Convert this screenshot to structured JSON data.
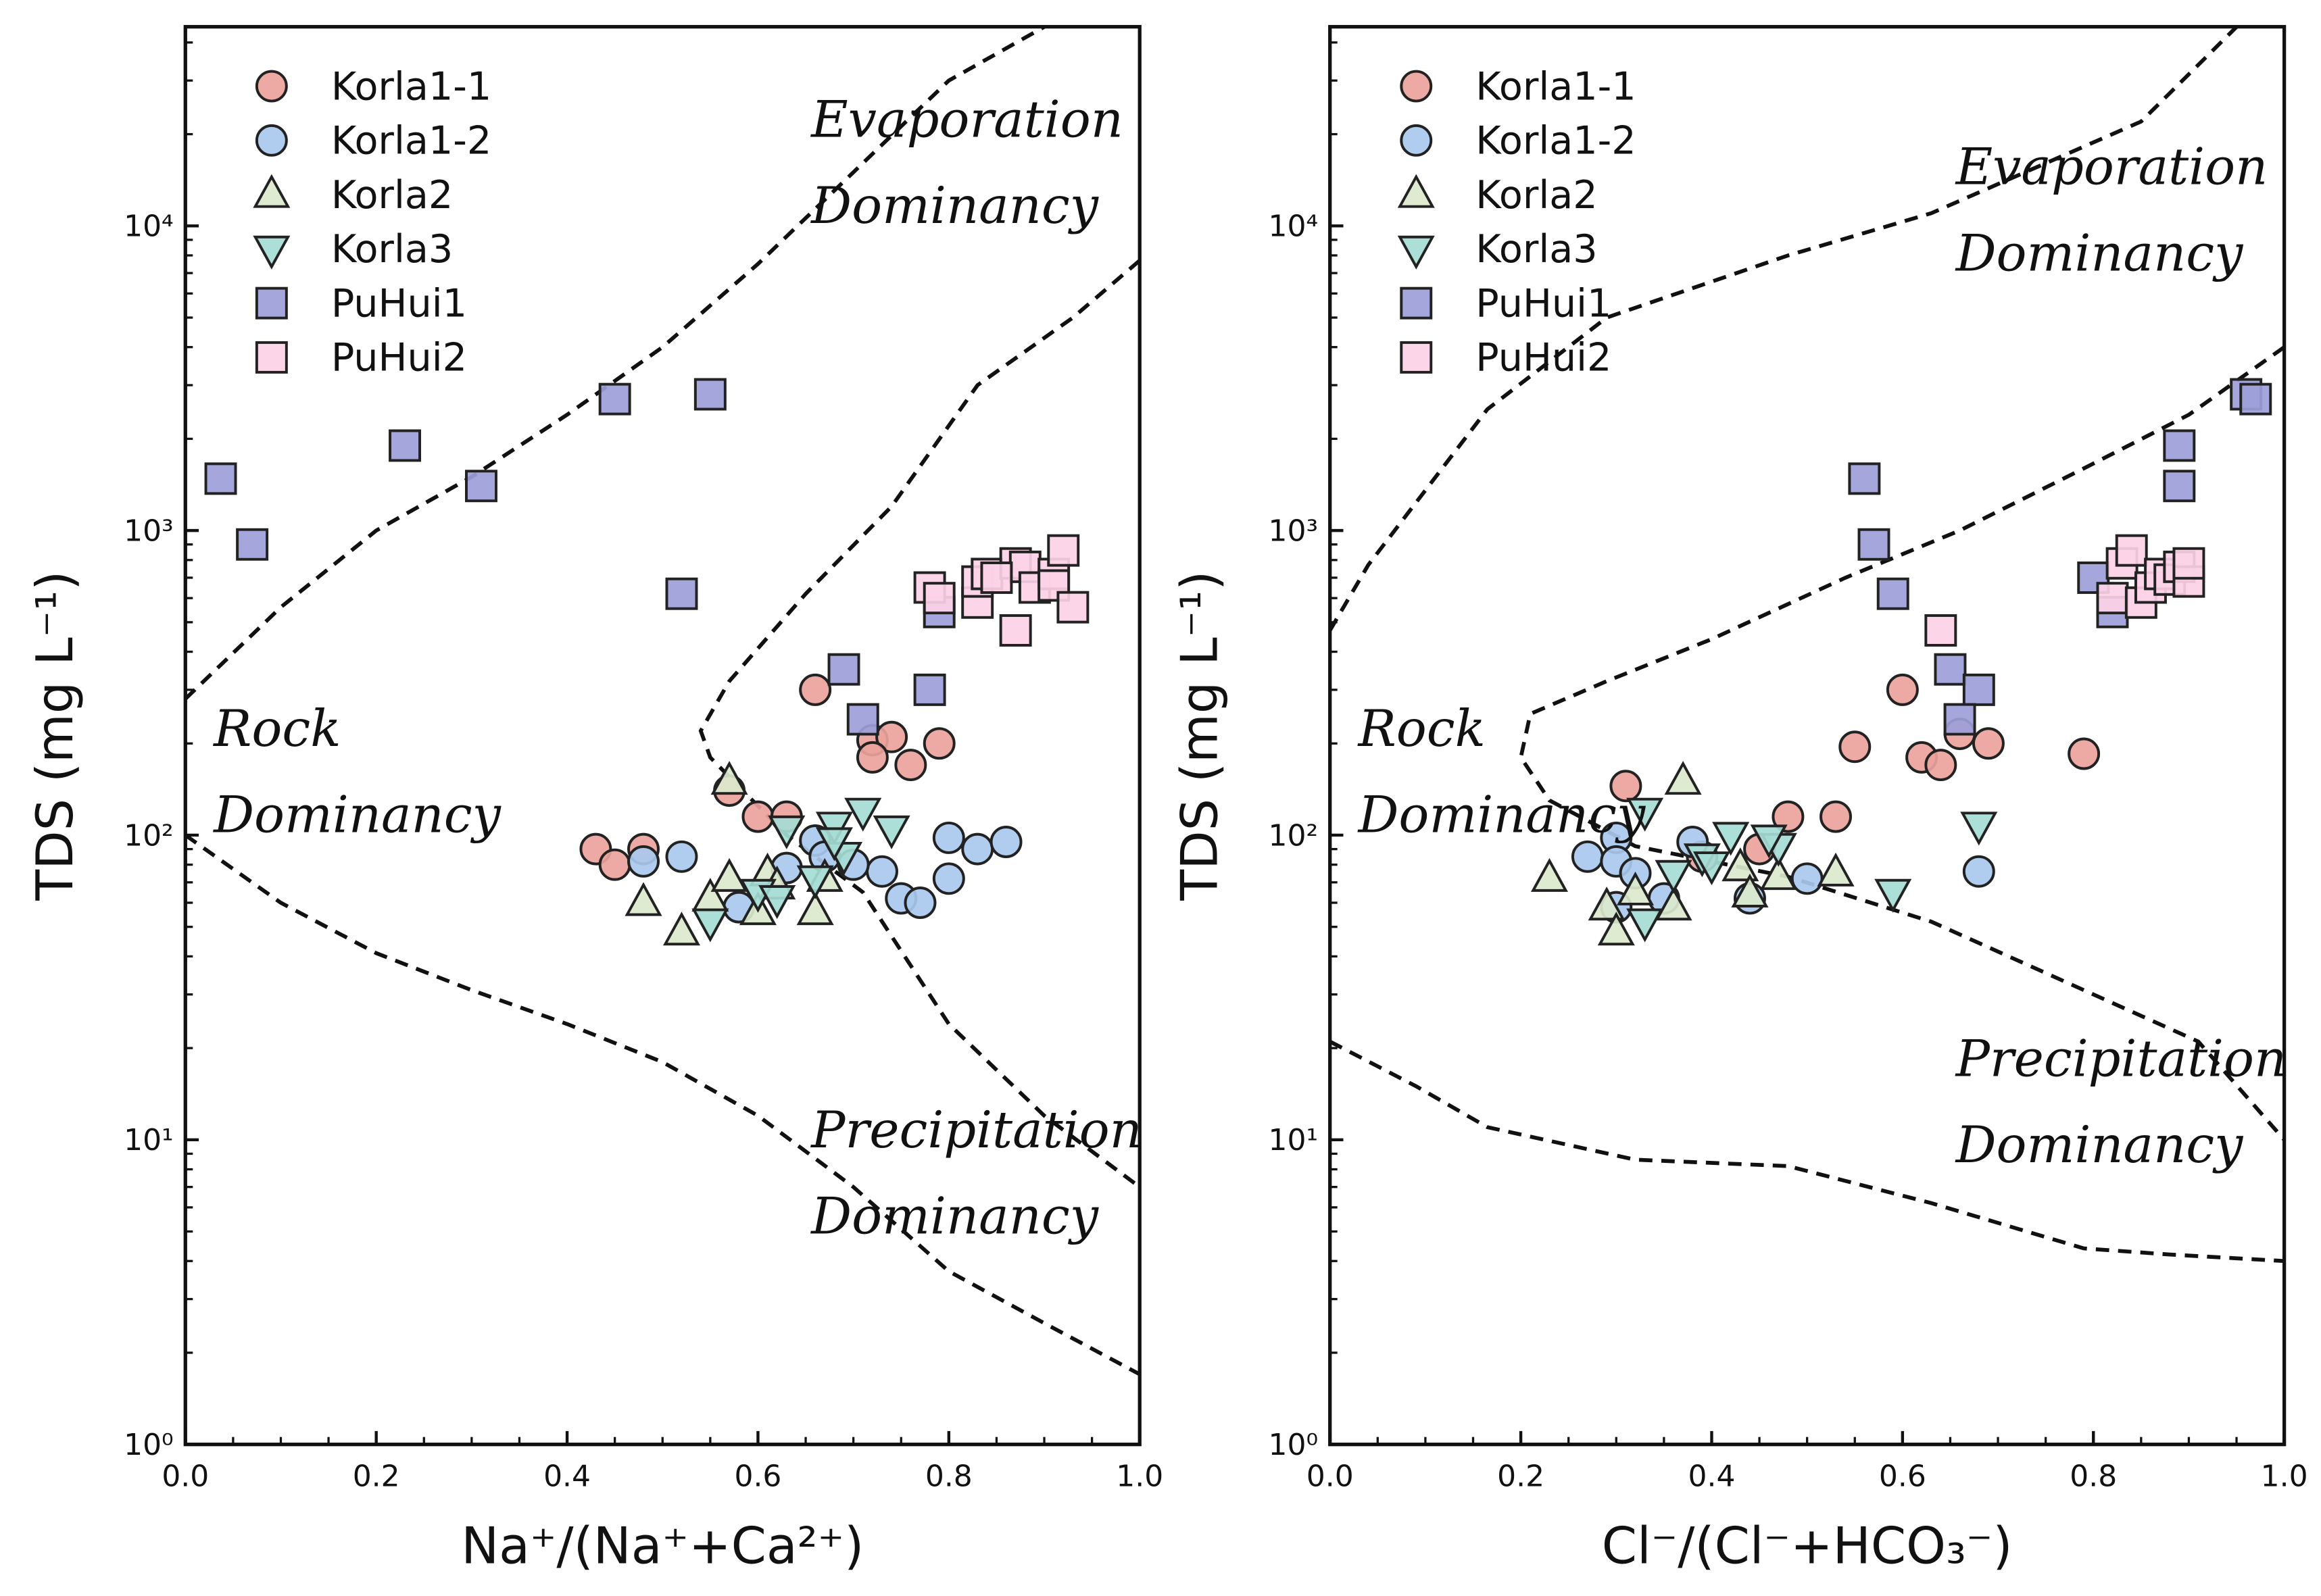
{
  "colors": {
    "Korla1-1": "#eba39c",
    "Korla1-2": "#a9c9ee",
    "Korla2": "#dbe9cc",
    "Korla3": "#a6dcd6",
    "PuHui1": "#9d9fd9",
    "PuHui2": "#fcd3e6"
  },
  "chart_data": [
    {
      "type": "scatter",
      "title": "",
      "xlabel": "Na⁺/(Na⁺+Ca²⁺)",
      "ylabel": "TDS (mg L⁻¹)",
      "xlim": [
        0,
        1
      ],
      "ylim": [
        1,
        45000
      ],
      "yscale": "log",
      "legend": "top-left",
      "xticks": [
        "0.0",
        "0.2",
        "0.4",
        "0.6",
        "0.8",
        "1.0"
      ],
      "yticks": [
        "10⁰",
        "10¹",
        "10²",
        "10³",
        "10⁴"
      ],
      "annotations": [
        {
          "lines": [
            "Evaporation",
            "Dominancy"
          ]
        },
        {
          "lines": [
            "Rock",
            "Dominancy"
          ]
        },
        {
          "lines": [
            "Precipitation",
            "Dominancy"
          ]
        }
      ],
      "series": [
        {
          "name": "Korla1-1",
          "marker": "circle",
          "points": [
            [
              0.66,
              300
            ],
            [
              0.72,
              205
            ],
            [
              0.74,
              210
            ],
            [
              0.79,
              200
            ],
            [
              0.72,
              180
            ],
            [
              0.76,
              170
            ],
            [
              0.57,
              140
            ],
            [
              0.6,
              115
            ],
            [
              0.63,
              115
            ],
            [
              0.43,
              90
            ],
            [
              0.45,
              80
            ],
            [
              0.48,
              90
            ]
          ]
        },
        {
          "name": "Korla1-2",
          "marker": "circle",
          "points": [
            [
              0.48,
              82
            ],
            [
              0.52,
              85
            ],
            [
              0.58,
              58
            ],
            [
              0.63,
              78
            ],
            [
              0.66,
              96
            ],
            [
              0.67,
              85
            ],
            [
              0.73,
              76
            ],
            [
              0.75,
              62
            ],
            [
              0.77,
              60
            ],
            [
              0.8,
              98
            ],
            [
              0.83,
              90
            ],
            [
              0.86,
              95
            ],
            [
              0.8,
              72
            ],
            [
              0.7,
              80
            ]
          ]
        },
        {
          "name": "Korla2",
          "marker": "triangle-up",
          "points": [
            [
              0.48,
              60
            ],
            [
              0.52,
              48
            ],
            [
              0.55,
              62
            ],
            [
              0.57,
              72
            ],
            [
              0.57,
              150
            ],
            [
              0.6,
              56
            ],
            [
              0.61,
              75
            ],
            [
              0.66,
              56
            ],
            [
              0.67,
              72
            ],
            [
              0.62,
              68
            ]
          ]
        },
        {
          "name": "Korla3",
          "marker": "triangle-down",
          "points": [
            [
              0.55,
              52
            ],
            [
              0.6,
              65
            ],
            [
              0.62,
              62
            ],
            [
              0.63,
              105
            ],
            [
              0.68,
              108
            ],
            [
              0.69,
              86
            ],
            [
              0.71,
              120
            ],
            [
              0.74,
              105
            ],
            [
              0.68,
              96
            ],
            [
              0.66,
              72
            ]
          ]
        },
        {
          "name": "PuHui1",
          "marker": "square",
          "points": [
            [
              0.037,
              1480
            ],
            [
              0.07,
              900
            ],
            [
              0.23,
              1900
            ],
            [
              0.31,
              1400
            ],
            [
              0.45,
              2700
            ],
            [
              0.55,
              2800
            ],
            [
              0.52,
              620
            ],
            [
              0.69,
              350
            ],
            [
              0.78,
              300
            ],
            [
              0.71,
              240
            ],
            [
              0.79,
              540
            ]
          ]
        },
        {
          "name": "PuHui2",
          "marker": "square",
          "points": [
            [
              0.78,
              650
            ],
            [
              0.79,
              600
            ],
            [
              0.83,
              580
            ],
            [
              0.83,
              680
            ],
            [
              0.84,
              720
            ],
            [
              0.87,
              780
            ],
            [
              0.88,
              760
            ],
            [
              0.89,
              650
            ],
            [
              0.87,
              470
            ],
            [
              0.91,
              720
            ],
            [
              0.92,
              860
            ],
            [
              0.91,
              660
            ],
            [
              0.93,
              560
            ],
            [
              0.85,
              700
            ]
          ]
        }
      ],
      "boundaries": [
        [
          [
            0,
            280
          ],
          [
            0.1,
            560
          ],
          [
            0.2,
            1000
          ],
          [
            0.3,
            1500
          ],
          [
            0.4,
            2400
          ],
          [
            0.5,
            4000
          ],
          [
            0.6,
            7500
          ],
          [
            0.7,
            15000
          ],
          [
            0.8,
            30000
          ],
          [
            0.9,
            45000
          ]
        ],
        [
          [
            0,
            100
          ],
          [
            0.1,
            60
          ],
          [
            0.2,
            41
          ],
          [
            0.3,
            31
          ],
          [
            0.4,
            24
          ],
          [
            0.5,
            18
          ],
          [
            0.6,
            12
          ],
          [
            0.7,
            7
          ],
          [
            0.8,
            3.7
          ],
          [
            0.9,
            2.5
          ],
          [
            1.0,
            1.7
          ]
        ],
        [
          [
            1.0,
            7700
          ],
          [
            0.93,
            5000
          ],
          [
            0.83,
            3000
          ],
          [
            0.74,
            1200
          ],
          [
            0.65,
            620
          ],
          [
            0.57,
            320
          ],
          [
            0.54,
            220
          ],
          [
            0.55,
            180
          ],
          [
            0.63,
            100
          ],
          [
            0.71,
            65
          ],
          [
            0.8,
            24
          ],
          [
            0.9,
            12
          ],
          [
            1.0,
            7
          ]
        ]
      ]
    },
    {
      "type": "scatter",
      "title": "",
      "xlabel": "Cl⁻/(Cl⁻+HCO₃⁻)",
      "ylabel": "TDS (mg L⁻¹)",
      "xlim": [
        0,
        1
      ],
      "ylim": [
        1,
        45000
      ],
      "yscale": "log",
      "legend": "top-left",
      "xticks": [
        "0.0",
        "0.2",
        "0.4",
        "0.6",
        "0.8",
        "1.0"
      ],
      "yticks": [
        "10⁰",
        "10¹",
        "10²",
        "10³",
        "10⁴"
      ],
      "annotations": [
        {
          "lines": [
            "Evaporation",
            "Dominancy"
          ]
        },
        {
          "lines": [
            "Rock",
            "Dominancy"
          ]
        },
        {
          "lines": [
            "Precipitation",
            "Dominancy"
          ]
        }
      ],
      "series": [
        {
          "name": "Korla1-1",
          "marker": "circle",
          "points": [
            [
              0.6,
              300
            ],
            [
              0.55,
              195
            ],
            [
              0.62,
              180
            ],
            [
              0.64,
              170
            ],
            [
              0.66,
              215
            ],
            [
              0.69,
              200
            ],
            [
              0.79,
              185
            ],
            [
              0.31,
              145
            ],
            [
              0.48,
              115
            ],
            [
              0.53,
              115
            ],
            [
              0.39,
              85
            ],
            [
              0.45,
              90
            ]
          ]
        },
        {
          "name": "Korla1-2",
          "marker": "circle",
          "points": [
            [
              0.27,
              85
            ],
            [
              0.3,
              98
            ],
            [
              0.3,
              82
            ],
            [
              0.32,
              75
            ],
            [
              0.38,
              95
            ],
            [
              0.35,
              62
            ],
            [
              0.44,
              62
            ],
            [
              0.5,
              72
            ],
            [
              0.68,
              76
            ],
            [
              0.3,
              58
            ]
          ]
        },
        {
          "name": "Korla2",
          "marker": "triangle-up",
          "points": [
            [
              0.23,
              72
            ],
            [
              0.29,
              58
            ],
            [
              0.3,
              48
            ],
            [
              0.37,
              150
            ],
            [
              0.36,
              58
            ],
            [
              0.43,
              78
            ],
            [
              0.47,
              73
            ],
            [
              0.53,
              75
            ],
            [
              0.32,
              65
            ],
            [
              0.44,
              64
            ]
          ]
        },
        {
          "name": "Korla3",
          "marker": "triangle-down",
          "points": [
            [
              0.33,
              120
            ],
            [
              0.33,
              52
            ],
            [
              0.39,
              85
            ],
            [
              0.42,
              100
            ],
            [
              0.36,
              75
            ],
            [
              0.47,
              92
            ],
            [
              0.46,
              98
            ],
            [
              0.59,
              65
            ],
            [
              0.68,
              108
            ],
            [
              0.4,
              80
            ]
          ]
        },
        {
          "name": "PuHui1",
          "marker": "square",
          "points": [
            [
              0.56,
              1480
            ],
            [
              0.57,
              900
            ],
            [
              0.59,
              620
            ],
            [
              0.65,
              350
            ],
            [
              0.68,
              300
            ],
            [
              0.66,
              240
            ],
            [
              0.89,
              1900
            ],
            [
              0.89,
              1400
            ],
            [
              0.96,
              2800
            ],
            [
              0.97,
              2700
            ],
            [
              0.82,
              540
            ],
            [
              0.8,
              700
            ]
          ]
        },
        {
          "name": "PuHui2",
          "marker": "square",
          "points": [
            [
              0.64,
              470
            ],
            [
              0.83,
              780
            ],
            [
              0.84,
              860
            ],
            [
              0.82,
              600
            ],
            [
              0.85,
              580
            ],
            [
              0.86,
              650
            ],
            [
              0.87,
              720
            ],
            [
              0.88,
              690
            ],
            [
              0.89,
              760
            ],
            [
              0.9,
              680
            ],
            [
              0.9,
              780
            ]
          ]
        }
      ],
      "boundaries": [
        [
          [
            0,
            470
          ],
          [
            0.04,
            770
          ],
          [
            0.165,
            2500
          ],
          [
            0.29,
            5000
          ],
          [
            0.48,
            8000
          ],
          [
            0.63,
            11000
          ],
          [
            0.85,
            22000
          ],
          [
            0.95,
            45000
          ]
        ],
        [
          [
            1.0,
            4000
          ],
          [
            0.9,
            2400
          ],
          [
            0.79,
            1600
          ],
          [
            0.66,
            1000
          ],
          [
            0.54,
            700
          ],
          [
            0.4,
            440
          ],
          [
            0.29,
            320
          ],
          [
            0.21,
            250
          ],
          [
            0.2,
            180
          ],
          [
            0.23,
            130
          ],
          [
            0.32,
            92
          ],
          [
            0.48,
            73
          ],
          [
            0.63,
            52
          ],
          [
            0.79,
            31
          ],
          [
            0.91,
            21
          ],
          [
            1.0,
            10
          ]
        ],
        [
          [
            0,
            21
          ],
          [
            0.09,
            15
          ],
          [
            0.165,
            11
          ],
          [
            0.32,
            8.6
          ],
          [
            0.48,
            8.2
          ],
          [
            0.63,
            6.2
          ],
          [
            0.79,
            4.4
          ],
          [
            0.88,
            4.2
          ],
          [
            1.0,
            4
          ]
        ]
      ]
    }
  ]
}
